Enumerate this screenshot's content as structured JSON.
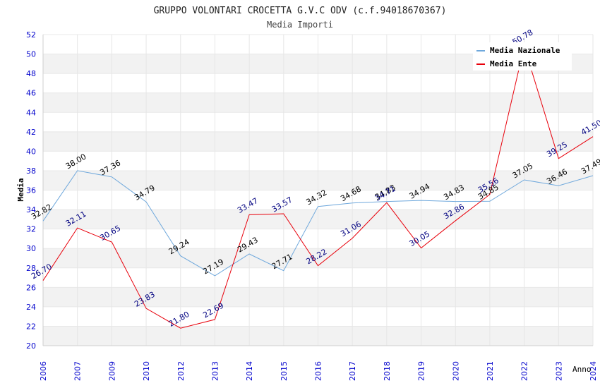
{
  "chart_data": {
    "type": "line",
    "title": "GRUPPO VOLONTARI CROCETTA G.V.C ODV (c.f.94018670367)",
    "subtitle": "Media Importi",
    "xlabel": "Anno",
    "ylabel": "Media",
    "ylim": [
      20,
      52
    ],
    "ytick_step": 2,
    "grid": true,
    "legend_position": "top-right",
    "categories": [
      "2006",
      "2007",
      "2009",
      "2010",
      "2012",
      "2013",
      "2014",
      "2015",
      "2016",
      "2017",
      "2018",
      "2019",
      "2020",
      "2021",
      "2022",
      "2023",
      "2024"
    ],
    "series": [
      {
        "name": "Media Nazionale",
        "color": "#6fa8dc",
        "label_color": "#000000",
        "values": [
          32.82,
          38.0,
          37.36,
          34.79,
          29.24,
          27.19,
          29.43,
          27.71,
          34.32,
          34.68,
          34.83,
          34.94,
          34.83,
          34.85,
          37.05,
          36.46,
          37.49
        ]
      },
      {
        "name": "Media Ente",
        "color": "#e8000b",
        "label_color": "#000080",
        "values": [
          26.7,
          32.11,
          30.65,
          23.83,
          21.8,
          22.69,
          33.47,
          33.57,
          28.22,
          31.06,
          34.71,
          30.05,
          32.86,
          35.56,
          50.78,
          39.25,
          41.5
        ]
      }
    ],
    "colors": {
      "axis_tick_labels": "#0000cc",
      "band": "#f2f2f2",
      "grid": "#ffffff"
    }
  }
}
